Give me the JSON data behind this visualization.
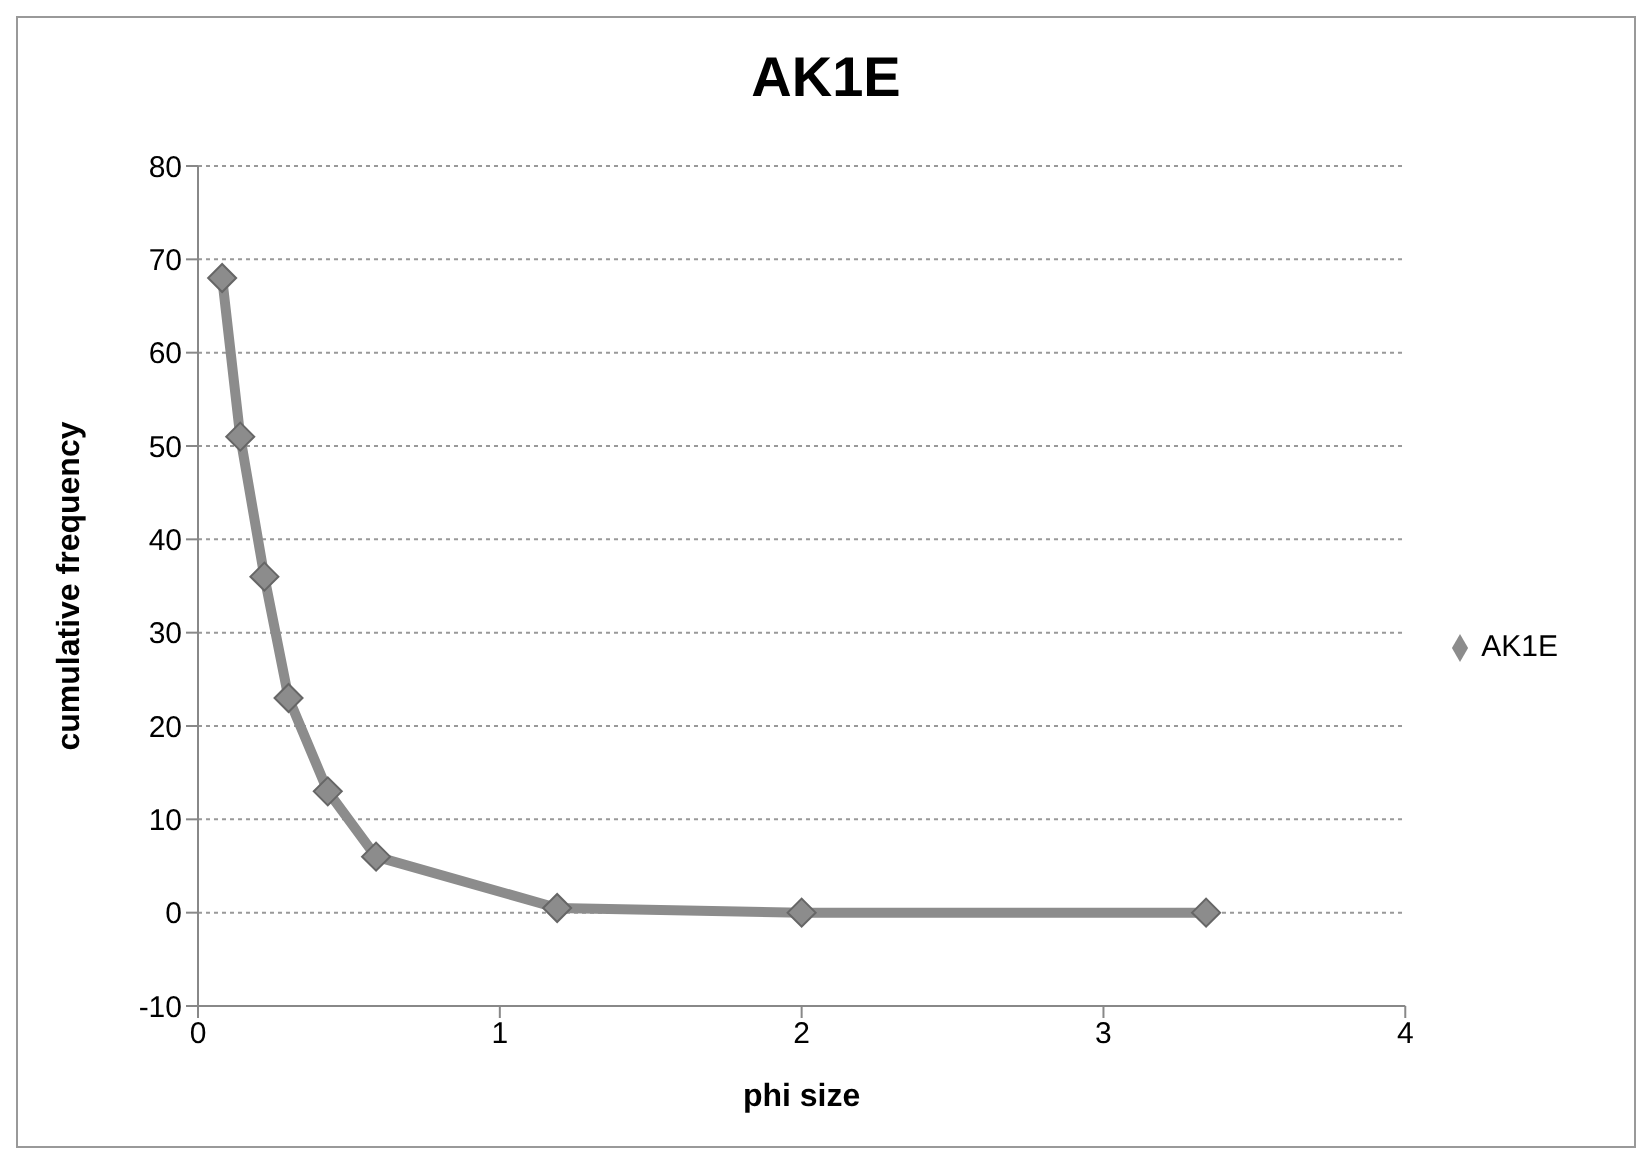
{
  "chart_data": {
    "type": "line",
    "title": "AK1E",
    "xlabel": "phi size",
    "ylabel": "cumulative frequency",
    "x": [
      0.08,
      0.14,
      0.22,
      0.3,
      0.43,
      0.59,
      1.19,
      2.0,
      3.34
    ],
    "series": [
      {
        "name": "AK1E",
        "color": "#8c8c8c",
        "values": [
          68,
          51,
          36,
          23,
          13,
          6,
          0.5,
          0,
          0
        ]
      }
    ],
    "xlim": [
      0,
      4
    ],
    "xticks": [
      0,
      1,
      2,
      3,
      4
    ],
    "ylim": [
      -10,
      80
    ],
    "yticks": [
      -10,
      0,
      10,
      20,
      30,
      40,
      50,
      60,
      70,
      80
    ],
    "grid": "y",
    "legend": "right",
    "marker": "diamond",
    "line_style": "solid"
  }
}
